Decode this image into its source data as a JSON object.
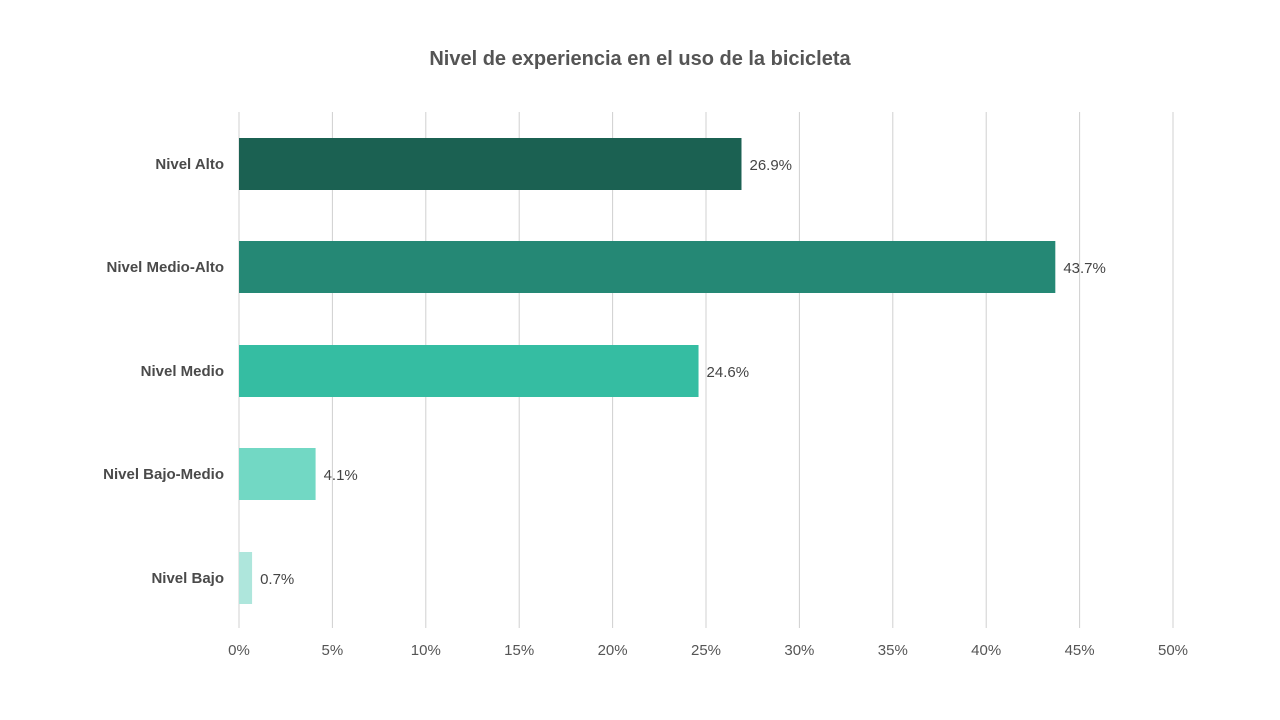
{
  "chart_data": {
    "type": "bar",
    "orientation": "horizontal",
    "title": "Nivel de experiencia en el uso de la bicicleta",
    "categories": [
      "Nivel Alto",
      "Nivel Medio-Alto",
      "Nivel Medio",
      "Nivel Bajo-Medio",
      "Nivel Bajo"
    ],
    "values": [
      26.9,
      43.7,
      24.6,
      4.1,
      0.7
    ],
    "value_labels": [
      "26.9%",
      "43.7%",
      "24.6%",
      "4.1%",
      "0.7%"
    ],
    "colors": [
      "#1b6152",
      "#258875",
      "#35bda2",
      "#72d8c4",
      "#aee6dc"
    ],
    "xlim": [
      0,
      50
    ],
    "x_ticks": [
      0,
      5,
      10,
      15,
      20,
      25,
      30,
      35,
      40,
      45,
      50
    ],
    "x_tick_labels": [
      "0%",
      "5%",
      "10%",
      "15%",
      "20%",
      "25%",
      "30%",
      "35%",
      "40%",
      "45%",
      "50%"
    ],
    "grid": true,
    "legend": "none"
  }
}
